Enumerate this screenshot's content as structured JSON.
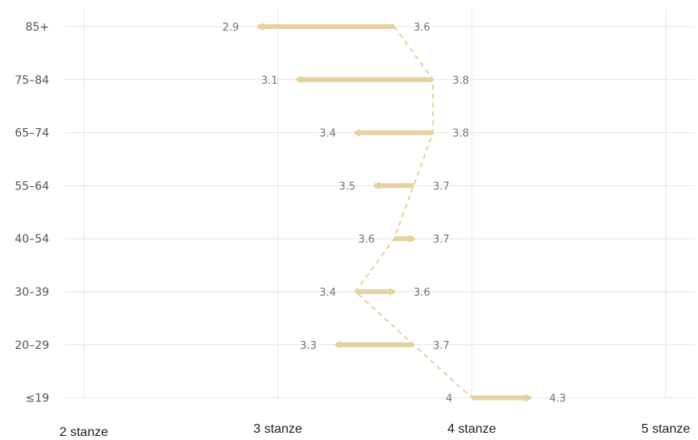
{
  "chart_data": {
    "type": "dumbbell",
    "categories": [
      "85+",
      "75–84",
      "65–74",
      "55–64",
      "40–54",
      "30–39",
      "20–29",
      "≤19"
    ],
    "series": [
      {
        "values": [
          3.6,
          3.8,
          3.8,
          3.7,
          3.6,
          3.4,
          3.7,
          4.0
        ]
      },
      {
        "values": [
          2.9,
          3.1,
          3.4,
          3.5,
          3.7,
          3.6,
          3.3,
          4.3
        ]
      }
    ],
    "value_labels": [
      [
        "3.6",
        "2.9"
      ],
      [
        "3.8",
        "3.1"
      ],
      [
        "3.8",
        "3.4"
      ],
      [
        "3.7",
        "3.5"
      ],
      [
        "3.6",
        "3.7"
      ],
      [
        "3.4",
        "3.6"
      ],
      [
        "3.7",
        "3.3"
      ],
      [
        "4",
        "4.3"
      ]
    ],
    "x_ticks": [
      2,
      3,
      4,
      5
    ],
    "x_tick_labels": [
      "2 stanze",
      "3 stanze",
      "4 stanze",
      "5 stanze"
    ],
    "xlim": [
      2,
      5
    ],
    "title": "",
    "xlabel": "",
    "ylabel": "",
    "grid": true,
    "colors": {
      "bar": "#e5d2a3",
      "connector": "#e8cf9f",
      "grid": "#e6e6e6",
      "label": "#777777"
    }
  }
}
